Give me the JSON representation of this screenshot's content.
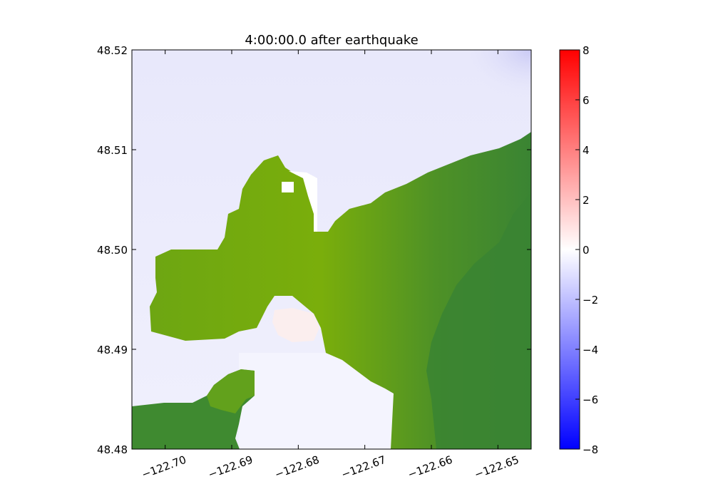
{
  "chart_data": {
    "type": "heatmap",
    "title": "4:00:00.0 after earthquake",
    "xlabel": "",
    "ylabel": "",
    "xlim": [
      -122.705,
      -122.645
    ],
    "ylim": [
      48.48,
      48.52
    ],
    "x_ticks": [
      -122.7,
      -122.69,
      -122.68,
      -122.67,
      -122.66,
      -122.65
    ],
    "x_tick_labels": [
      "−122.70",
      "−122.69",
      "−122.68",
      "−122.67",
      "−122.66",
      "−122.65"
    ],
    "y_ticks": [
      48.48,
      48.49,
      48.5,
      48.51,
      48.52
    ],
    "y_tick_labels": [
      "48.48",
      "48.49",
      "48.50",
      "48.51",
      "48.52"
    ],
    "colorbar": {
      "min": -8,
      "max": 8,
      "ticks": [
        8,
        6,
        4,
        2,
        0,
        -2,
        -4,
        -6,
        -8
      ],
      "tick_labels": [
        "8",
        "6",
        "4",
        "2",
        "0",
        "−2",
        "−4",
        "−6",
        "−8"
      ],
      "colormap": "blue-white-red",
      "colors": {
        "low": "#0000ff",
        "mid": "#ffffff",
        "high": "#ff0000"
      }
    },
    "field": "surface elevation (water) over land topography",
    "water_value_range": [
      -1,
      0.5
    ],
    "land_color_light": "#7aae0b",
    "land_color_dark": "#3a8433",
    "grid": false,
    "legend": "colorbar-right"
  }
}
